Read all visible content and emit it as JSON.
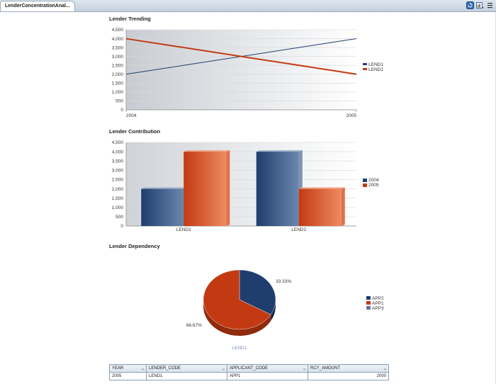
{
  "tab": {
    "title": "LenderConcentrationAnal..."
  },
  "toolbar": {
    "icons": [
      "refresh-icon",
      "export-icon",
      "menu-icon"
    ]
  },
  "sections": {
    "trending": "Lender Trending",
    "contribution": "Lender Contribution",
    "dependency": "Lender Dependency"
  },
  "chart_data": [
    {
      "type": "line",
      "title": "Lender Trending",
      "x": [
        "2004",
        "2005"
      ],
      "ylim": [
        0,
        4500
      ],
      "yticks": [
        "4,500",
        "4,000",
        "3,500",
        "3,000",
        "2,500",
        "2,000",
        "1,500",
        "1,000",
        "500",
        "0"
      ],
      "series": [
        {
          "name": "LEND1",
          "values": [
            2000,
            4000
          ],
          "color": "#1f3d6e"
        },
        {
          "name": "LEND2",
          "values": [
            4000,
            2000
          ],
          "color": "#c33a12"
        }
      ],
      "legend": "right",
      "grid": true
    },
    {
      "type": "bar",
      "title": "Lender Contribution",
      "categories": [
        "LEND1",
        "LEND2"
      ],
      "ylim": [
        0,
        4500
      ],
      "yticks": [
        "4,500",
        "4,000",
        "3,500",
        "3,000",
        "2,500",
        "2,000",
        "1,500",
        "1,000",
        "500",
        "0"
      ],
      "series": [
        {
          "name": "2004",
          "values": [
            2000,
            4000
          ],
          "color": "#1f3d6e"
        },
        {
          "name": "2005",
          "values": [
            4000,
            2000
          ],
          "color": "#c33a12"
        }
      ],
      "legend": "right",
      "grid": true
    },
    {
      "type": "pie",
      "title": "Lender Dependency",
      "caption": "LEND1",
      "slices": [
        {
          "name": "APP2",
          "value": 33.33,
          "label": "33.33%",
          "color": "#1f3d6e"
        },
        {
          "name": "APP1",
          "value": 66.67,
          "label": "66.67%",
          "color": "#c33a12"
        },
        {
          "name": "APP3",
          "value": 0,
          "label": "",
          "color": "#6c6fa0"
        }
      ],
      "legend": "right"
    }
  ],
  "table": {
    "columns": [
      "YEAR",
      "LENDER_CODE",
      "APPLICANT_CODE",
      "RCY_AMOUNT"
    ],
    "rows": [
      [
        "2005",
        "LEND1",
        "APP1",
        "2000"
      ]
    ]
  }
}
